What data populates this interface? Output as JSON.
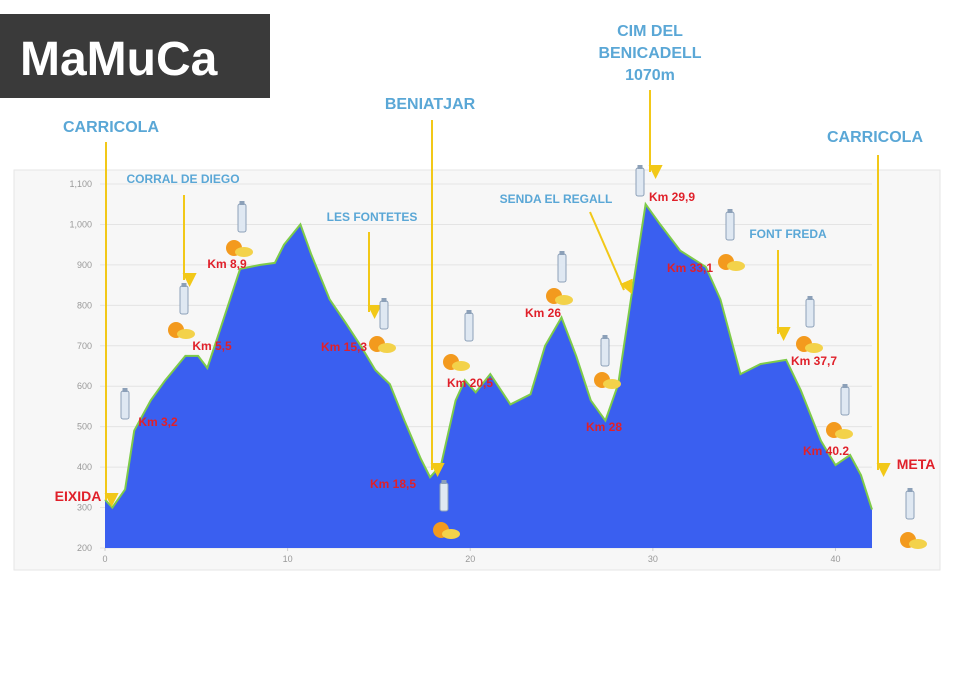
{
  "chart_data": {
    "type": "area",
    "title": "MaMuCa",
    "color": "#3a5ff0",
    "line_color": "#7ecb4a",
    "grid": true,
    "x": [
      0,
      0.4,
      1.1,
      1.6,
      2.5,
      3.3,
      4.4,
      5.1,
      5.6,
      6.3,
      7.4,
      8.5,
      9.3,
      9.8,
      10.7,
      11.3,
      12.3,
      13.2,
      14.0,
      14.8,
      15.6,
      16.4,
      17.3,
      17.8,
      18.4,
      19.2,
      19.7,
      20.3,
      21.1,
      22.2,
      23.3,
      24.1,
      25.0,
      25.8,
      26.6,
      27.4,
      28.1,
      28.8,
      29.6,
      30.0,
      30.4,
      31.5,
      32.9,
      33.7,
      34.8,
      35.9,
      37.3,
      38.1,
      39.2,
      40.0,
      40.8,
      41.4,
      42.0
    ],
    "values": [
      320,
      300,
      345,
      490,
      565,
      615,
      675,
      675,
      645,
      740,
      890,
      900,
      905,
      950,
      1000,
      925,
      815,
      755,
      700,
      640,
      605,
      515,
      420,
      375,
      405,
      565,
      615,
      585,
      630,
      555,
      580,
      700,
      770,
      675,
      565,
      515,
      605,
      815,
      1050,
      1025,
      1000,
      935,
      895,
      815,
      630,
      655,
      665,
      590,
      465,
      405,
      430,
      380,
      295
    ],
    "xlim": [
      0,
      42
    ],
    "xticks": [
      0,
      10,
      20,
      30,
      40
    ],
    "ylim": [
      200,
      1100
    ],
    "yticks": [
      200,
      300,
      400,
      500,
      600,
      700,
      800,
      900,
      {
        "value": 1000,
        "label": "1,000"
      },
      {
        "value": 1100,
        "label": "1,100"
      }
    ],
    "place_labels": [
      "CARRICOLA",
      "CORRAL DE DIEGO",
      "BENIATJAR",
      "LES FONTETES",
      "SENDA EL REGALL",
      "FONT FREDA",
      "CARRICOLA"
    ],
    "summit_label": [
      "CIM DEL",
      "BENICADELL",
      "1070m"
    ],
    "start_label": "EIXIDA",
    "finish_label": "META",
    "km_labels": [
      "Km 3,2",
      "Km 5,5",
      "Km 8,9",
      "Km 15,3",
      "Km 18,5",
      "Km 20,5",
      "Km 26",
      "Km 28",
      "Km 29,9",
      "Km 33,1",
      "Km 37,7",
      "Km 40.2"
    ]
  }
}
